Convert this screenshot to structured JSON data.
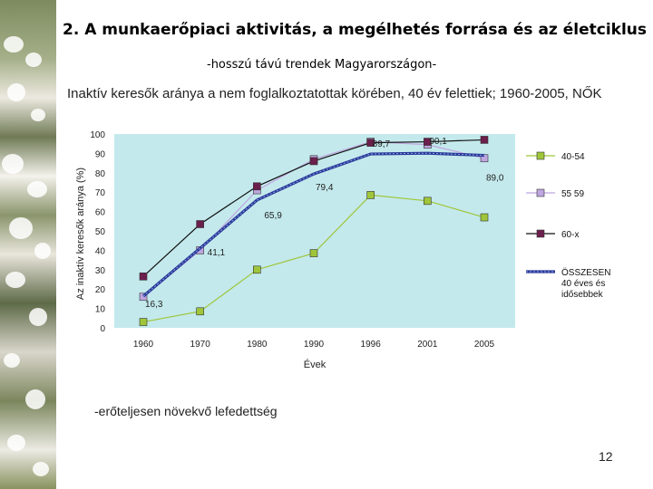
{
  "slide": {
    "title": "2. A munkaerőpiaci aktivitás, a megélhetés forrása és az életciklus",
    "subtitle": "-hosszú távú trendek Magyarországon-",
    "description": "Inaktív keresők aránya a nem foglalkoztatottak körében, 40 év felettiek; 1960-2005, NŐK",
    "note": "-erőteljesen növekvő lefedettség",
    "page_number": "12"
  },
  "chart_data": {
    "type": "line",
    "categories": [
      "1960",
      "1970",
      "1980",
      "1990",
      "1996",
      "2001",
      "2005"
    ],
    "ylim": [
      0,
      100
    ],
    "yticks": [
      0,
      10,
      20,
      30,
      40,
      50,
      60,
      70,
      80,
      90,
      100
    ],
    "xlabel": "Évek",
    "ylabel": "Az inaktív keresők aránya (%)",
    "colors": {
      "plot_bg": "#c3e9ec",
      "s40_54": "#9fc63a",
      "s55_59": "#bea6e0",
      "s60": "#6b1f4c",
      "total": "#283a99"
    },
    "series": [
      {
        "key": "s40_54",
        "name": "40-54",
        "values": [
          3,
          8.5,
          30,
          38.5,
          68.5,
          65.5,
          57
        ]
      },
      {
        "key": "s55_59",
        "name": "55 59",
        "values": [
          16,
          40,
          71,
          87,
          96,
          94.5,
          87.5
        ]
      },
      {
        "key": "s60",
        "name": "60-x",
        "values": [
          26.5,
          53.5,
          73,
          86,
          95.5,
          96,
          97
        ]
      },
      {
        "key": "total",
        "name": "ÖSSZESEN 40 éves és idősebbek",
        "values": [
          16.3,
          41.1,
          65.9,
          79.4,
          89.7,
          90.1,
          89
        ]
      }
    ],
    "data_labels": [
      "16,3",
      "41,1",
      "65,9",
      "79,4",
      "89,7",
      "90,1",
      "89,0"
    ]
  }
}
